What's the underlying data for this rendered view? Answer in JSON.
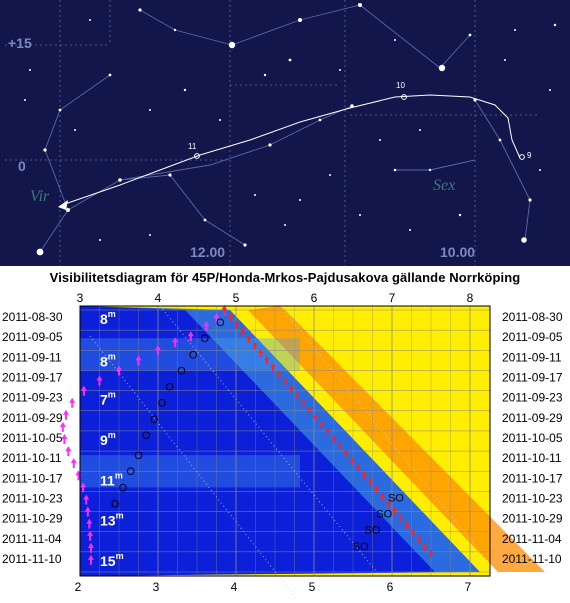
{
  "starmap": {
    "labels": {
      "mag15": "+15",
      "mag0": "0",
      "ra12": "12.00",
      "ra10": "10.00",
      "vir": "Vir",
      "sex": "Sex",
      "tick9": "9",
      "tick10": "10",
      "tick11": "11"
    },
    "colors": {
      "background": "#12164a",
      "grid": "#5a6aa8",
      "star": "#ffffff",
      "constellation_text": "#3a7a7a"
    }
  },
  "chart_title": "Visibilitetsdiagram för 45P/Honda-Mrkos-Pajdusakova gällande Norrköping",
  "chart_data": {
    "type": "visibility-diagram",
    "title": "Visibilitetsdiagram för 45P/Honda-Mrkos-Pajdusakova gällande Norrköping",
    "x_top_ticks": [
      "3",
      "4",
      "5",
      "6",
      "7",
      "8"
    ],
    "x_bottom_ticks": [
      "2",
      "3",
      "4",
      "5",
      "6",
      "7"
    ],
    "x_top_range": [
      3,
      8
    ],
    "x_bottom_range": [
      2,
      7
    ],
    "dates": [
      "2011-08-30",
      "2011-09-05",
      "2011-09-11",
      "2011-09-17",
      "2011-09-23",
      "2011-09-29",
      "2011-10-05",
      "2011-10-11",
      "2011-10-17",
      "2011-10-23",
      "2011-10-29",
      "2011-11-04",
      "2011-11-10"
    ],
    "magnitude_labels": [
      {
        "text": "8",
        "sup": "m",
        "date_index": 0.2
      },
      {
        "text": "8",
        "sup": "m",
        "date_index": 2.3
      },
      {
        "text": "7",
        "sup": "m",
        "date_index": 4.2
      },
      {
        "text": "9",
        "sup": "m",
        "date_index": 6.2
      },
      {
        "text": "11",
        "sup": "m",
        "date_index": 8.2
      },
      {
        "text": "13",
        "sup": "m",
        "date_index": 10.2
      },
      {
        "text": "15",
        "sup": "m",
        "date_index": 12.2
      }
    ],
    "comet_altitude_track": {
      "color": "#ff2cff",
      "points": [
        [
          4.85,
          0
        ],
        [
          4.75,
          0.4
        ],
        [
          4.62,
          0.8
        ],
        [
          4.42,
          1.3
        ],
        [
          4.22,
          1.6
        ],
        [
          4.0,
          2.0
        ],
        [
          3.75,
          2.5
        ],
        [
          3.5,
          3.0
        ],
        [
          3.25,
          3.5
        ],
        [
          3.05,
          4.0
        ],
        [
          2.9,
          4.6
        ],
        [
          2.82,
          5.2
        ],
        [
          2.78,
          5.8
        ],
        [
          2.8,
          6.4
        ],
        [
          2.85,
          7.0
        ],
        [
          2.92,
          7.6
        ],
        [
          2.98,
          8.2
        ],
        [
          3.04,
          8.8
        ],
        [
          3.08,
          9.4
        ],
        [
          3.1,
          10.0
        ],
        [
          3.12,
          10.6
        ],
        [
          3.13,
          11.2
        ],
        [
          3.14,
          11.8
        ],
        [
          3.14,
          12.4
        ]
      ]
    },
    "comet_o_markers": [
      [
        4.8,
        0.6
      ],
      [
        4.6,
        1.4
      ],
      [
        4.45,
        2.2
      ],
      [
        4.3,
        3.0
      ],
      [
        4.15,
        3.8
      ],
      [
        4.05,
        4.6
      ],
      [
        3.95,
        5.4
      ],
      [
        3.85,
        6.2
      ],
      [
        3.75,
        7.2
      ],
      [
        3.65,
        8.0
      ],
      [
        3.55,
        8.8
      ],
      [
        3.45,
        9.6
      ]
    ],
    "sun_track": {
      "color": "#ff2020",
      "points": [
        [
          4.85,
          0
        ],
        [
          7.5,
          12.1
        ]
      ]
    },
    "so_markers": [
      [
        7.05,
        9.3
      ],
      [
        6.9,
        10.1
      ],
      [
        6.75,
        10.9
      ],
      [
        6.6,
        11.7
      ]
    ],
    "so_label": "SO",
    "o_label": "O",
    "colors": {
      "night": "#0b20d8",
      "twilight": "#2a6ce0",
      "dawn": "#4aa0f0",
      "day": "#ffee00",
      "sun_orange": "#ff8c00"
    }
  }
}
